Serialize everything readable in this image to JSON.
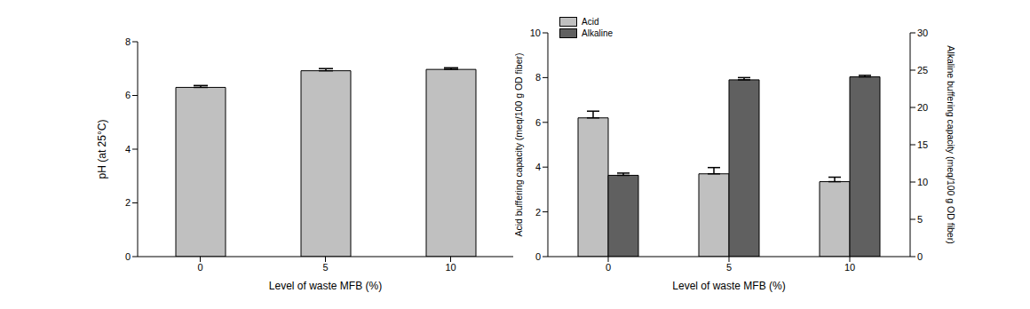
{
  "chart_data": [
    {
      "type": "bar",
      "categories": [
        "0",
        "5",
        "10"
      ],
      "values": [
        6.3,
        6.92,
        6.97
      ],
      "errors": [
        0.07,
        0.08,
        0.06
      ],
      "color": "#c0c0c0",
      "xlabel": "Level of waste MFB (%)",
      "ylabel": "pH (at 25°C)",
      "ylim": [
        0,
        8
      ],
      "yticks": [
        0,
        2,
        4,
        6,
        8
      ],
      "grid": false
    },
    {
      "type": "bar",
      "categories": [
        "0",
        "5",
        "10"
      ],
      "series": [
        {
          "name": "Acid",
          "color": "#c0c0c0",
          "values": [
            6.2,
            3.7,
            3.35
          ],
          "errors": [
            0.3,
            0.28,
            0.2
          ]
        },
        {
          "name": "Alkaline",
          "color": "#606060",
          "values": [
            10.9,
            23.7,
            24.1
          ],
          "errors": [
            0.3,
            0.3,
            0.2
          ],
          "axis": "y2"
        }
      ],
      "xlabel": "Level of waste MFB (%)",
      "ylabel": "Acid buffering capacity (meq/100 g OD fiber)",
      "y2label": "Alkaline buffering capacity (meq/100 g OD fiber)",
      "ylim": [
        0,
        10
      ],
      "yticks": [
        0,
        2,
        4,
        6,
        8,
        10
      ],
      "y2lim": [
        0,
        30
      ],
      "y2ticks": [
        0,
        5,
        10,
        15,
        20,
        25,
        30
      ],
      "legend": "top-left",
      "grid": false
    }
  ]
}
